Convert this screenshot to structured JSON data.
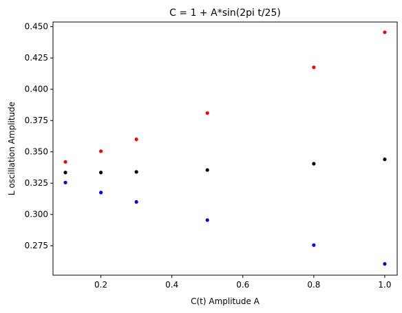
{
  "chart_data": {
    "type": "scatter",
    "title": "C = 1 + A*sin(2pi t/25)",
    "xlabel": "C(t) Amplitude A",
    "ylabel": "L oscillation Amplitude",
    "xlim": [
      0.065,
      1.035
    ],
    "ylim": [
      0.2515,
      0.4537
    ],
    "xticks": [
      0.2,
      0.4,
      0.6,
      0.8,
      1.0
    ],
    "xtick_labels": [
      "0.2",
      "0.4",
      "0.6",
      "0.8",
      "1.0"
    ],
    "yticks": [
      0.275,
      0.3,
      0.325,
      0.35,
      0.375,
      0.4,
      0.425,
      0.45
    ],
    "ytick_labels": [
      "0.275",
      "0.300",
      "0.325",
      "0.350",
      "0.375",
      "0.400",
      "0.425",
      "0.450"
    ],
    "grid": false,
    "x": [
      0.1,
      0.2,
      0.3,
      0.5,
      0.8,
      1.0
    ],
    "series": [
      {
        "color": "#ff0000",
        "values": [
          0.342,
          0.3505,
          0.36,
          0.381,
          0.4175,
          0.4455
        ]
      },
      {
        "color": "#000000",
        "values": [
          0.3335,
          0.3335,
          0.334,
          0.3355,
          0.3405,
          0.344
        ]
      },
      {
        "color": "#0000ff",
        "values": [
          0.3255,
          0.3175,
          0.31,
          0.2955,
          0.2755,
          0.2605
        ]
      }
    ]
  }
}
